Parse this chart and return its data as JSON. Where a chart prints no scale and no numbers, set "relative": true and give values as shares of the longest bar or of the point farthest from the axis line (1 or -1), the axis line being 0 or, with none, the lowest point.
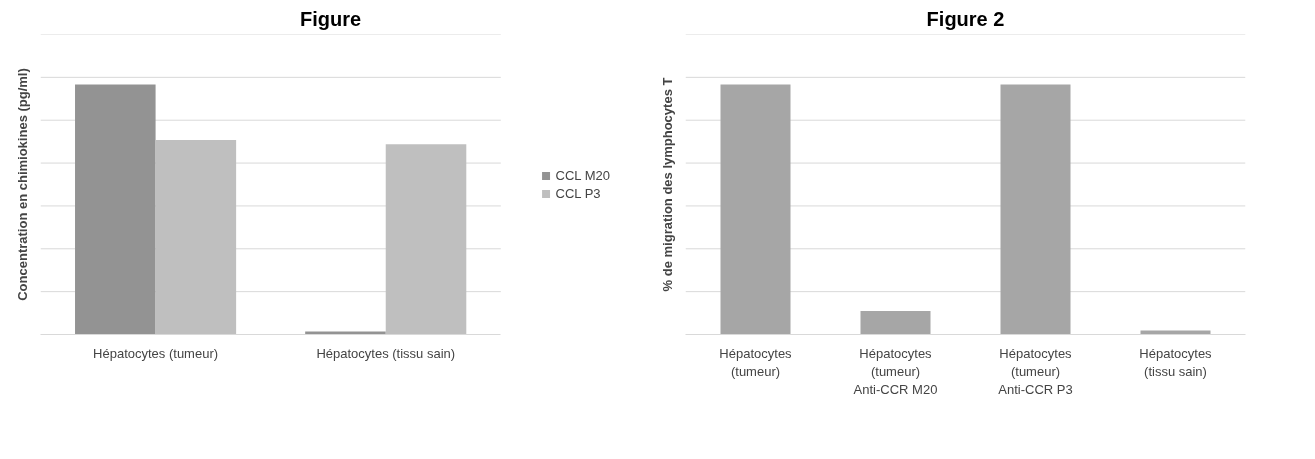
{
  "chart_data": [
    {
      "type": "bar",
      "title": "Figure",
      "ylabel": "Concentration en chimiokines (pg/ml)",
      "categories": [
        "Hépatocytes (tumeur)",
        "Hépatocytes (tissu sain)"
      ],
      "relative": true,
      "grid": "y",
      "legend": "right",
      "tick_labels": "x",
      "series": [
        {
          "name": "CCL M20",
          "color": "#939393",
          "values": [
            1,
            0.012
          ]
        },
        {
          "name": "CCL P3",
          "color": "#bfbfbf",
          "values": [
            0.778,
            0.761
          ]
        }
      ]
    },
    {
      "type": "bar",
      "title": "Figure 2",
      "ylabel": "% de migration des lymphocytes T",
      "categories": [
        "Hépatocytes\n(tumeur)",
        "Hépatocytes\n(tumeur)\nAnti-CCR M20",
        "Hépatocytes\n(tumeur)\nAnti-CCR P3",
        "Hépatocytes\n(tissu sain)"
      ],
      "relative": true,
      "grid": "y",
      "tick_labels": "x",
      "series": [
        {
          "color": "#a6a6a6",
          "values": [
            1,
            0.094,
            1,
            0.016
          ]
        }
      ]
    }
  ]
}
